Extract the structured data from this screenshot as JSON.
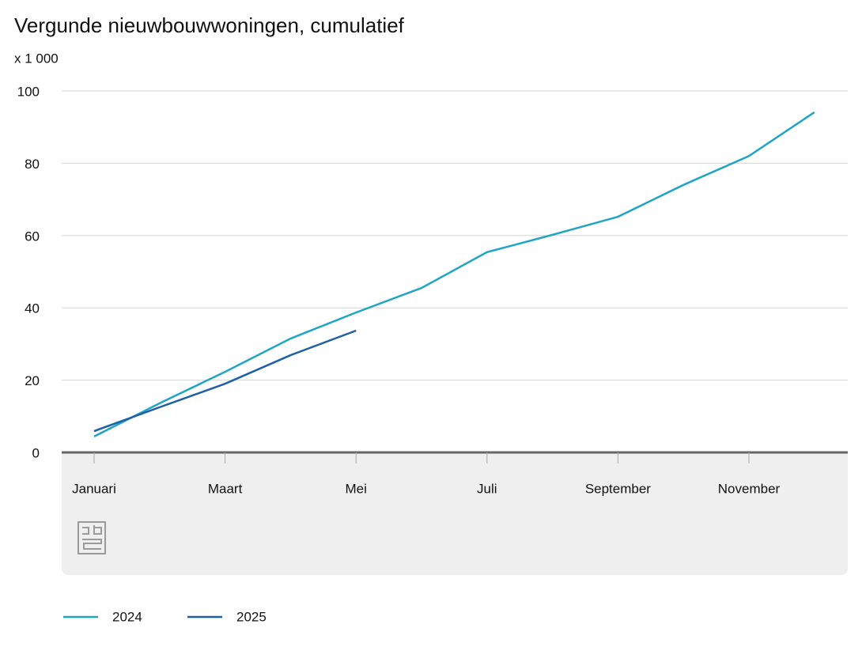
{
  "chart_data": {
    "type": "line",
    "title": "Vergunde nieuwbouwwoningen, cumulatief",
    "subtitle": "x 1 000",
    "categories": [
      "Januari",
      null,
      "Maart",
      null,
      "Mei",
      null,
      "Juli",
      null,
      "September",
      null,
      "November",
      null
    ],
    "series": [
      {
        "name": "2024",
        "color": "#20a4c6",
        "values": [
          4.4,
          13.6,
          22.3,
          31.5,
          38.7,
          45.5,
          55.4,
          60.2,
          65.2,
          74,
          82,
          94.1
        ]
      },
      {
        "name": "2025",
        "color": "#1e5fa8",
        "values": [
          5.9,
          12.5,
          19,
          26.9,
          33.7,
          null,
          null,
          null,
          null,
          null,
          null,
          null
        ]
      }
    ],
    "ylim": [
      0,
      100
    ],
    "yticks": [
      0,
      20,
      40,
      60,
      80,
      100
    ],
    "grid": true
  }
}
